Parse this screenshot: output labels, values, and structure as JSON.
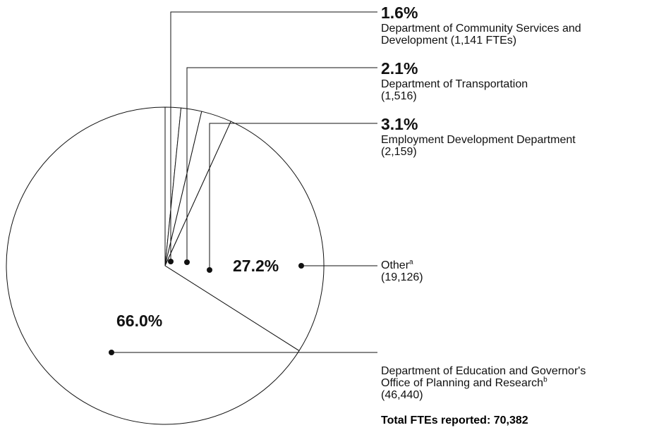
{
  "chart_data": {
    "type": "pie",
    "categories": [
      "Department of Community Services and Development",
      "Department of Transportation",
      "Employment Development Department",
      "Other",
      "Department of Education and Governor's Office of Planning and Research"
    ],
    "label_notes": [
      null,
      null,
      null,
      "a",
      "b"
    ],
    "values": [
      1.6,
      2.1,
      3.1,
      27.2,
      66.0
    ],
    "value_labels": [
      "1.6%",
      "2.1%",
      "3.1%",
      "27.2%",
      "66.0%"
    ],
    "counts": [
      1141,
      1516,
      2159,
      19126,
      46440
    ],
    "count_labels": [
      "(1,141 FTEs)",
      "(1,516)",
      "(2,159)",
      "(19,126)",
      "(46,440)"
    ],
    "color": "#ffffff",
    "note": "Total FTEs reported: 70,382"
  }
}
